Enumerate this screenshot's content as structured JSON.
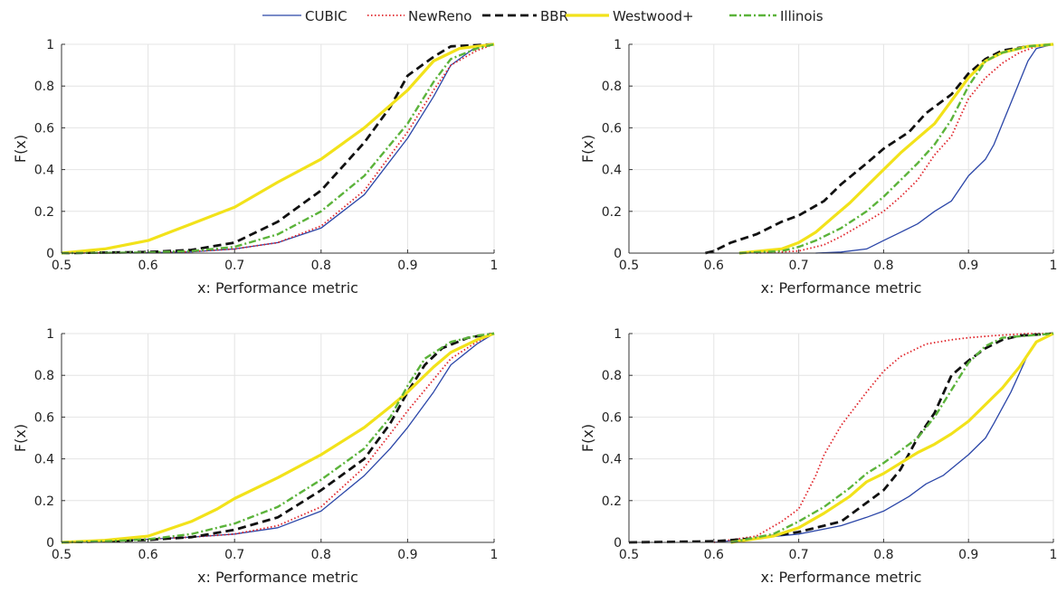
{
  "legend": [
    {
      "name": "CUBIC",
      "color": "#2b46a8",
      "style": "solid"
    },
    {
      "name": "NewReno",
      "color": "#e0242a",
      "style": "dotted"
    },
    {
      "name": "BBR",
      "color": "#111111",
      "style": "dashed"
    },
    {
      "name": "Westwood+",
      "color": "#f2e21a",
      "style": "solid-thick"
    },
    {
      "name": "Illinois",
      "color": "#5bb33a",
      "style": "dashdot"
    }
  ],
  "chart_data": [
    {
      "type": "line",
      "xlabel": "x:  Performance metric",
      "ylabel": "F(x)",
      "xlim": [
        0.5,
        1.0
      ],
      "ylim": [
        0,
        1
      ],
      "xticks": [
        "0.5",
        "0.6",
        "0.7",
        "0.8",
        "0.9",
        "1"
      ],
      "yticks": [
        "0",
        "0.2",
        "0.4",
        "0.6",
        "0.8",
        "1"
      ],
      "grid": true,
      "series": [
        {
          "name": "CUBIC",
          "x": [
            0.5,
            0.6,
            0.65,
            0.7,
            0.75,
            0.8,
            0.85,
            0.9,
            0.93,
            0.95,
            0.98,
            1.0
          ],
          "y": [
            0,
            0.002,
            0.006,
            0.02,
            0.05,
            0.12,
            0.28,
            0.55,
            0.75,
            0.9,
            0.99,
            1
          ]
        },
        {
          "name": "NewReno",
          "x": [
            0.5,
            0.6,
            0.65,
            0.7,
            0.75,
            0.8,
            0.85,
            0.9,
            0.93,
            0.95,
            0.98,
            1.0
          ],
          "y": [
            0,
            0.002,
            0.007,
            0.02,
            0.05,
            0.13,
            0.3,
            0.58,
            0.78,
            0.9,
            0.97,
            1
          ]
        },
        {
          "name": "BBR",
          "x": [
            0.5,
            0.6,
            0.65,
            0.7,
            0.75,
            0.8,
            0.85,
            0.88,
            0.9,
            0.93,
            0.95,
            1.0
          ],
          "y": [
            0,
            0.005,
            0.015,
            0.05,
            0.15,
            0.3,
            0.53,
            0.7,
            0.85,
            0.94,
            0.99,
            1
          ]
        },
        {
          "name": "Westwood+",
          "x": [
            0.5,
            0.55,
            0.6,
            0.65,
            0.7,
            0.75,
            0.8,
            0.85,
            0.9,
            0.93,
            0.96,
            1.0
          ],
          "y": [
            0,
            0.02,
            0.06,
            0.14,
            0.22,
            0.34,
            0.45,
            0.6,
            0.78,
            0.92,
            0.98,
            1
          ]
        },
        {
          "name": "Illinois",
          "x": [
            0.5,
            0.6,
            0.65,
            0.7,
            0.75,
            0.8,
            0.85,
            0.9,
            0.93,
            0.95,
            0.98,
            1.0
          ],
          "y": [
            0,
            0.003,
            0.01,
            0.03,
            0.09,
            0.2,
            0.37,
            0.62,
            0.82,
            0.93,
            0.98,
            1
          ]
        }
      ]
    },
    {
      "type": "line",
      "xlabel": "x:  Performance metric",
      "ylabel": "F(x)",
      "xlim": [
        0.5,
        1.0
      ],
      "ylim": [
        0,
        1
      ],
      "xticks": [
        "0.5",
        "0.6",
        "0.7",
        "0.8",
        "0.9",
        "1"
      ],
      "yticks": [
        "0",
        "0.2",
        "0.4",
        "0.6",
        "0.8",
        "1"
      ],
      "grid": true,
      "series": [
        {
          "name": "CUBIC",
          "x": [
            0.72,
            0.75,
            0.78,
            0.8,
            0.82,
            0.84,
            0.86,
            0.88,
            0.9,
            0.92,
            0.93,
            0.95,
            0.97,
            0.98,
            1.0
          ],
          "y": [
            0,
            0.005,
            0.02,
            0.06,
            0.1,
            0.14,
            0.2,
            0.25,
            0.37,
            0.45,
            0.52,
            0.72,
            0.92,
            0.98,
            1
          ]
        },
        {
          "name": "NewReno",
          "x": [
            0.65,
            0.7,
            0.73,
            0.75,
            0.78,
            0.8,
            0.82,
            0.84,
            0.86,
            0.88,
            0.9,
            0.92,
            0.94,
            0.96,
            0.98,
            1.0
          ],
          "y": [
            0,
            0.01,
            0.04,
            0.08,
            0.15,
            0.2,
            0.27,
            0.35,
            0.47,
            0.56,
            0.74,
            0.84,
            0.91,
            0.96,
            0.99,
            1
          ]
        },
        {
          "name": "BBR",
          "x": [
            0.59,
            0.6,
            0.62,
            0.65,
            0.68,
            0.7,
            0.73,
            0.75,
            0.78,
            0.8,
            0.83,
            0.85,
            0.88,
            0.9,
            0.92,
            0.94,
            0.97,
            1.0
          ],
          "y": [
            0,
            0.01,
            0.05,
            0.09,
            0.15,
            0.18,
            0.25,
            0.33,
            0.43,
            0.5,
            0.58,
            0.67,
            0.76,
            0.86,
            0.93,
            0.97,
            0.99,
            1
          ]
        },
        {
          "name": "Westwood+",
          "x": [
            0.63,
            0.68,
            0.7,
            0.72,
            0.74,
            0.76,
            0.78,
            0.8,
            0.82,
            0.84,
            0.86,
            0.88,
            0.9,
            0.92,
            0.94,
            0.97,
            1.0
          ],
          "y": [
            0,
            0.02,
            0.05,
            0.1,
            0.17,
            0.24,
            0.32,
            0.4,
            0.48,
            0.55,
            0.62,
            0.73,
            0.84,
            0.92,
            0.96,
            0.99,
            1
          ]
        },
        {
          "name": "Illinois",
          "x": [
            0.63,
            0.68,
            0.7,
            0.72,
            0.75,
            0.78,
            0.8,
            0.82,
            0.84,
            0.86,
            0.88,
            0.9,
            0.92,
            0.94,
            0.97,
            1.0
          ],
          "y": [
            0,
            0.01,
            0.03,
            0.06,
            0.12,
            0.2,
            0.27,
            0.35,
            0.43,
            0.52,
            0.64,
            0.8,
            0.92,
            0.96,
            0.99,
            1
          ]
        }
      ]
    },
    {
      "type": "line",
      "xlabel": "x:  Performance metric",
      "ylabel": "F(x)",
      "xlim": [
        0.5,
        1.0
      ],
      "ylim": [
        0,
        1
      ],
      "xticks": [
        "0.5",
        "0.6",
        "0.7",
        "0.8",
        "0.9",
        "1"
      ],
      "yticks": [
        "0",
        "0.2",
        "0.4",
        "0.6",
        "0.8",
        "1"
      ],
      "grid": true,
      "series": [
        {
          "name": "CUBIC",
          "x": [
            0.5,
            0.55,
            0.6,
            0.65,
            0.7,
            0.75,
            0.8,
            0.85,
            0.88,
            0.9,
            0.93,
            0.95,
            0.98,
            1.0
          ],
          "y": [
            0,
            0.005,
            0.015,
            0.025,
            0.04,
            0.07,
            0.15,
            0.32,
            0.45,
            0.55,
            0.72,
            0.85,
            0.95,
            1
          ]
        },
        {
          "name": "NewReno",
          "x": [
            0.5,
            0.55,
            0.6,
            0.65,
            0.7,
            0.75,
            0.8,
            0.85,
            0.88,
            0.9,
            0.93,
            0.95,
            0.98,
            1.0
          ],
          "y": [
            0,
            0.005,
            0.015,
            0.025,
            0.04,
            0.08,
            0.17,
            0.36,
            0.52,
            0.63,
            0.78,
            0.88,
            0.96,
            1
          ]
        },
        {
          "name": "BBR",
          "x": [
            0.5,
            0.55,
            0.6,
            0.65,
            0.7,
            0.75,
            0.8,
            0.85,
            0.88,
            0.9,
            0.92,
            0.94,
            0.97,
            1.0
          ],
          "y": [
            0,
            0.005,
            0.012,
            0.025,
            0.06,
            0.12,
            0.25,
            0.4,
            0.57,
            0.72,
            0.85,
            0.93,
            0.98,
            1
          ]
        },
        {
          "name": "Westwood+",
          "x": [
            0.5,
            0.55,
            0.6,
            0.65,
            0.68,
            0.7,
            0.75,
            0.8,
            0.85,
            0.88,
            0.9,
            0.93,
            0.95,
            0.98,
            1.0
          ],
          "y": [
            0,
            0.01,
            0.03,
            0.1,
            0.16,
            0.21,
            0.31,
            0.42,
            0.55,
            0.65,
            0.72,
            0.84,
            0.91,
            0.97,
            1
          ]
        },
        {
          "name": "Illinois",
          "x": [
            0.5,
            0.55,
            0.6,
            0.65,
            0.7,
            0.75,
            0.8,
            0.85,
            0.88,
            0.9,
            0.92,
            0.95,
            0.98,
            1.0
          ],
          "y": [
            0,
            0.005,
            0.015,
            0.04,
            0.09,
            0.17,
            0.3,
            0.45,
            0.6,
            0.75,
            0.88,
            0.96,
            0.99,
            1
          ]
        }
      ]
    },
    {
      "type": "line",
      "xlabel": "x:  Performance metric",
      "ylabel": "F(x)",
      "xlim": [
        0.5,
        1.0
      ],
      "ylim": [
        0,
        1
      ],
      "xticks": [
        "0.5",
        "0.6",
        "0.7",
        "0.8",
        "0.9",
        "1"
      ],
      "yticks": [
        "0",
        "0.2",
        "0.4",
        "0.6",
        "0.8",
        "1"
      ],
      "grid": true,
      "series": [
        {
          "name": "CUBIC",
          "x": [
            0.6,
            0.65,
            0.7,
            0.75,
            0.78,
            0.8,
            0.83,
            0.85,
            0.87,
            0.9,
            0.92,
            0.93,
            0.95,
            0.97,
            0.98,
            1.0
          ],
          "y": [
            0,
            0.02,
            0.04,
            0.08,
            0.12,
            0.15,
            0.22,
            0.28,
            0.32,
            0.42,
            0.5,
            0.57,
            0.72,
            0.9,
            0.96,
            1
          ]
        },
        {
          "name": "NewReno",
          "x": [
            0.6,
            0.65,
            0.68,
            0.7,
            0.71,
            0.72,
            0.73,
            0.75,
            0.78,
            0.8,
            0.82,
            0.85,
            0.88,
            0.9,
            0.93,
            0.97,
            1.0
          ],
          "y": [
            0,
            0.03,
            0.1,
            0.16,
            0.24,
            0.32,
            0.42,
            0.56,
            0.72,
            0.82,
            0.89,
            0.95,
            0.97,
            0.98,
            0.99,
            1,
            1
          ]
        },
        {
          "name": "BBR",
          "x": [
            0.5,
            0.6,
            0.65,
            0.7,
            0.75,
            0.8,
            0.82,
            0.84,
            0.86,
            0.88,
            0.9,
            0.92,
            0.94,
            0.96,
            1.0
          ],
          "y": [
            0,
            0.005,
            0.02,
            0.05,
            0.1,
            0.25,
            0.35,
            0.5,
            0.62,
            0.8,
            0.87,
            0.93,
            0.97,
            0.99,
            1
          ]
        },
        {
          "name": "Westwood+",
          "x": [
            0.62,
            0.67,
            0.7,
            0.73,
            0.76,
            0.78,
            0.8,
            0.82,
            0.84,
            0.86,
            0.88,
            0.9,
            0.92,
            0.94,
            0.96,
            0.98,
            1.0
          ],
          "y": [
            0,
            0.03,
            0.07,
            0.14,
            0.22,
            0.29,
            0.33,
            0.38,
            0.43,
            0.47,
            0.52,
            0.58,
            0.66,
            0.74,
            0.84,
            0.96,
            1
          ]
        },
        {
          "name": "Illinois",
          "x": [
            0.62,
            0.67,
            0.7,
            0.73,
            0.76,
            0.78,
            0.8,
            0.82,
            0.84,
            0.86,
            0.88,
            0.9,
            0.92,
            0.94,
            0.97,
            1.0
          ],
          "y": [
            0,
            0.04,
            0.1,
            0.17,
            0.26,
            0.33,
            0.38,
            0.44,
            0.5,
            0.6,
            0.73,
            0.86,
            0.94,
            0.98,
            0.99,
            1
          ]
        }
      ]
    }
  ]
}
